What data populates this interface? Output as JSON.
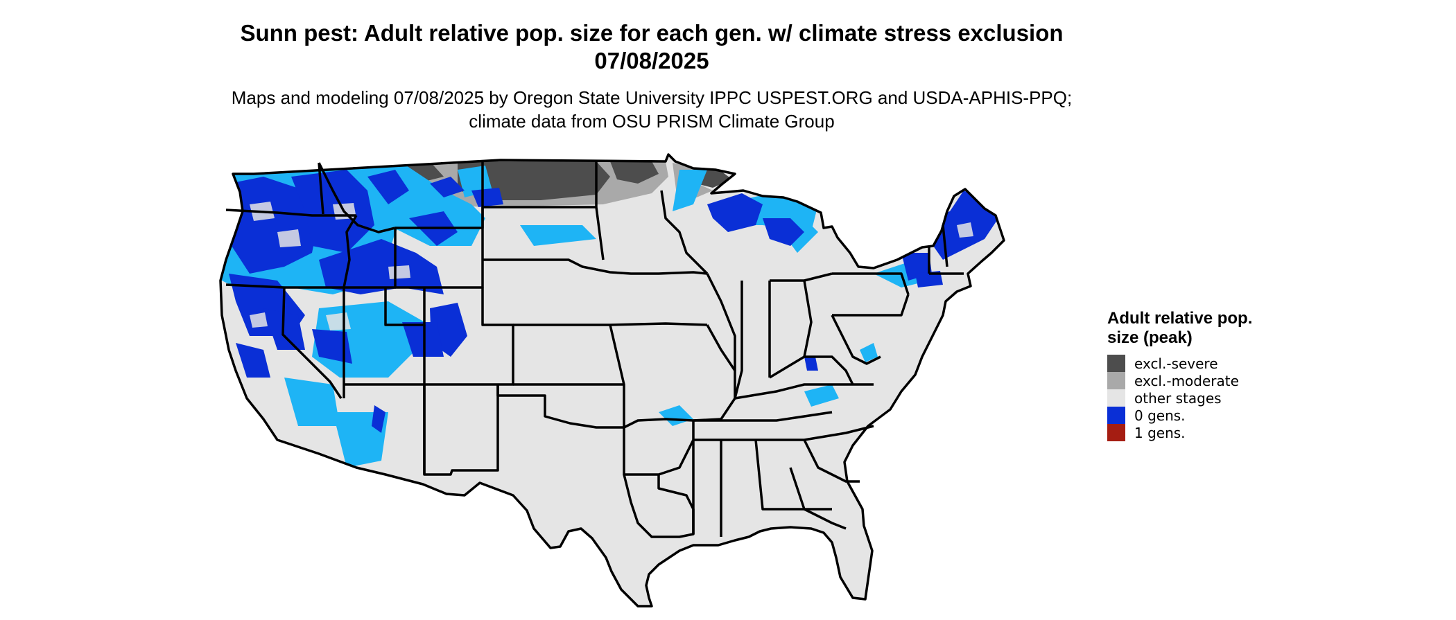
{
  "title": "Sunn pest: Adult relative pop. size for each gen. w/ climate stress exclusion 07/08/2025",
  "subtitle": "Maps and modeling 07/08/2025 by Oregon State University IPPC USPEST.ORG and USDA-APHIS-PPQ; climate data from OSU PRISM Climate Group",
  "legend": {
    "title": "Adult relative pop. size (peak)",
    "items": [
      {
        "label": "excl.-severe",
        "color": "#4d4d4d"
      },
      {
        "label": "excl.-moderate",
        "color": "#a9a9a9"
      },
      {
        "label": "other stages",
        "color": "#e5e5e5"
      },
      {
        "label": "0 gens.",
        "color": "#0a2fd6"
      },
      {
        "label": "1 gens.",
        "color": "#a51d12"
      }
    ]
  },
  "colors": {
    "light_blue": "#1eb4f5",
    "blue": "#0a2fd6",
    "state_border": "#000000"
  }
}
